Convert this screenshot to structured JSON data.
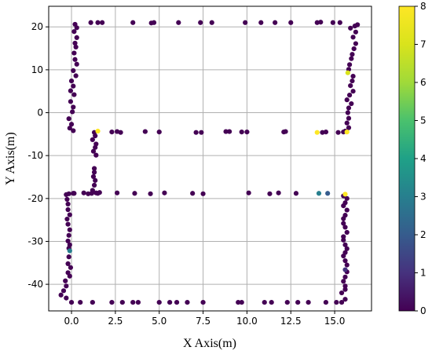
{
  "chart_data": {
    "type": "scatter",
    "xlabel": "X Axis(m)",
    "ylabel": "Y Axis(m)",
    "xlim": [
      -1.3,
      17.1
    ],
    "ylim": [
      -46.2,
      24.8
    ],
    "xticks": [
      "0.0",
      "2.5",
      "5.0",
      "7.5",
      "10.0",
      "12.5",
      "15.0"
    ],
    "yticks": [
      "20",
      "10",
      "0",
      "-10",
      "-20",
      "-30",
      "-40"
    ],
    "xtick_values": [
      0,
      2.5,
      5,
      7.5,
      10,
      12.5,
      15
    ],
    "ytick_values": [
      20,
      10,
      0,
      -10,
      -20,
      -30,
      -40
    ],
    "grid": true,
    "colormap": "viridis",
    "colorbar": {
      "min": 0,
      "max": 8,
      "ticks": [
        "0",
        "1",
        "2",
        "3",
        "4",
        "5",
        "6",
        "7",
        "8"
      ]
    },
    "points": [
      [
        0.2,
        20.6,
        0
      ],
      [
        0.3,
        19.8,
        0
      ],
      [
        0.15,
        18.9,
        0
      ],
      [
        0.3,
        17.5,
        0
      ],
      [
        0.2,
        16.2,
        0
      ],
      [
        0.25,
        15.3,
        0
      ],
      [
        0.15,
        13.9,
        0
      ],
      [
        0.2,
        12.4,
        0
      ],
      [
        0.3,
        11.3,
        0
      ],
      [
        0.1,
        9.8,
        0
      ],
      [
        0.25,
        8.6,
        0
      ],
      [
        0.0,
        7.4,
        0
      ],
      [
        0.1,
        6.2,
        0
      ],
      [
        -0.05,
        5.1,
        0
      ],
      [
        0.15,
        4.2,
        0
      ],
      [
        -0.05,
        2.6,
        0
      ],
      [
        0.1,
        1.3,
        0
      ],
      [
        0.05,
        0.2,
        0
      ],
      [
        -0.15,
        -1.4,
        0
      ],
      [
        0.0,
        -2.7,
        0
      ],
      [
        -0.1,
        -3.6,
        0
      ],
      [
        0.1,
        -4.2,
        0
      ],
      [
        1.1,
        21.0,
        0
      ],
      [
        1.5,
        21.0,
        0
      ],
      [
        1.75,
        21.0,
        0
      ],
      [
        3.5,
        21.0,
        0
      ],
      [
        4.55,
        20.9,
        0
      ],
      [
        4.7,
        21.0,
        0
      ],
      [
        6.1,
        21.0,
        0
      ],
      [
        7.35,
        21.0,
        0
      ],
      [
        8.0,
        21.0,
        0
      ],
      [
        9.9,
        21.0,
        0
      ],
      [
        10.8,
        21.0,
        0
      ],
      [
        11.6,
        21.0,
        0
      ],
      [
        12.5,
        21.0,
        0
      ],
      [
        14.0,
        21.0,
        0
      ],
      [
        14.2,
        21.1,
        0
      ],
      [
        14.9,
        21.0,
        0
      ],
      [
        15.3,
        21.0,
        0
      ],
      [
        16.3,
        20.5,
        0
      ],
      [
        16.15,
        20.2,
        0
      ],
      [
        15.9,
        19.7,
        0
      ],
      [
        16.2,
        18.8,
        0
      ],
      [
        16.05,
        17.6,
        0
      ],
      [
        16.2,
        16.1,
        0
      ],
      [
        16.1,
        14.9,
        0
      ],
      [
        16.0,
        13.6,
        0
      ],
      [
        15.95,
        12.6,
        0
      ],
      [
        15.85,
        11.2,
        0
      ],
      [
        15.8,
        10.1,
        0
      ],
      [
        15.75,
        9.3,
        7
      ],
      [
        16.05,
        8.5,
        0
      ],
      [
        16.0,
        7.4,
        0
      ],
      [
        15.9,
        6.3,
        0
      ],
      [
        16.05,
        5.0,
        0
      ],
      [
        15.85,
        4.1,
        0
      ],
      [
        15.7,
        3.0,
        0
      ],
      [
        15.95,
        2.1,
        0
      ],
      [
        15.8,
        1.1,
        0
      ],
      [
        15.75,
        0.0,
        0
      ],
      [
        15.8,
        -1.3,
        0
      ],
      [
        15.7,
        -2.4,
        0
      ],
      [
        15.8,
        -3.5,
        0
      ],
      [
        15.6,
        -4.3,
        0
      ],
      [
        15.7,
        -4.5,
        8
      ],
      [
        1.3,
        -4.6,
        0
      ],
      [
        1.5,
        -4.3,
        8
      ],
      [
        1.35,
        -5.4,
        0
      ],
      [
        1.2,
        -6.3,
        0
      ],
      [
        1.4,
        -7.3,
        0
      ],
      [
        1.35,
        -8.1,
        0
      ],
      [
        1.25,
        -9.0,
        0
      ],
      [
        1.4,
        -9.9,
        0
      ],
      [
        1.3,
        -13.0,
        0
      ],
      [
        1.3,
        -13.9,
        0
      ],
      [
        1.25,
        -14.9,
        0
      ],
      [
        1.35,
        -15.8,
        0
      ],
      [
        1.3,
        -16.9,
        0
      ],
      [
        1.2,
        -18.1,
        0
      ],
      [
        2.3,
        -4.5,
        0
      ],
      [
        2.6,
        -4.4,
        0
      ],
      [
        2.8,
        -4.6,
        0
      ],
      [
        4.2,
        -4.4,
        0
      ],
      [
        5.0,
        -4.5,
        0
      ],
      [
        7.1,
        -4.6,
        0
      ],
      [
        7.4,
        -4.6,
        0
      ],
      [
        8.8,
        -4.4,
        0
      ],
      [
        9.0,
        -4.4,
        0
      ],
      [
        9.7,
        -4.5,
        0
      ],
      [
        10.0,
        -4.5,
        0
      ],
      [
        12.1,
        -4.5,
        0
      ],
      [
        12.2,
        -4.4,
        0
      ],
      [
        14.0,
        -4.6,
        8
      ],
      [
        14.3,
        -4.6,
        0
      ],
      [
        14.5,
        -4.5,
        0
      ],
      [
        15.2,
        -4.6,
        0
      ],
      [
        15.5,
        -4.5,
        0
      ],
      [
        -0.15,
        -18.9,
        0
      ],
      [
        0.1,
        -18.8,
        0
      ],
      [
        0.15,
        -18.8,
        0
      ],
      [
        0.7,
        -18.7,
        0
      ],
      [
        0.95,
        -18.9,
        0
      ],
      [
        1.15,
        -18.8,
        0
      ],
      [
        1.4,
        -18.7,
        0
      ],
      [
        1.5,
        -18.8,
        0
      ],
      [
        1.6,
        -18.6,
        0
      ],
      [
        2.6,
        -18.7,
        0
      ],
      [
        3.6,
        -18.8,
        0
      ],
      [
        4.5,
        -18.9,
        0
      ],
      [
        5.3,
        -18.7,
        0
      ],
      [
        6.9,
        -18.8,
        0
      ],
      [
        7.5,
        -18.9,
        0
      ],
      [
        10.1,
        -18.7,
        0
      ],
      [
        11.3,
        -18.9,
        0
      ],
      [
        11.8,
        -18.7,
        0
      ],
      [
        12.8,
        -18.8,
        0
      ],
      [
        14.1,
        -18.8,
        3
      ],
      [
        14.6,
        -18.8,
        2
      ],
      [
        15.5,
        -19.4,
        0
      ],
      [
        -0.3,
        -19.1,
        0
      ],
      [
        -0.25,
        -20.2,
        0
      ],
      [
        -0.2,
        -21.3,
        0
      ],
      [
        -0.2,
        -22.6,
        0
      ],
      [
        -0.1,
        -23.8,
        0
      ],
      [
        -0.25,
        -24.8,
        0
      ],
      [
        -0.2,
        -26.0,
        0
      ],
      [
        -0.1,
        -27.3,
        0
      ],
      [
        -0.15,
        -28.6,
        0
      ],
      [
        -0.2,
        -29.9,
        0
      ],
      [
        -0.1,
        -30.8,
        0
      ],
      [
        -0.15,
        -31.6,
        0
      ],
      [
        -0.1,
        -32.2,
        3
      ],
      [
        -0.15,
        -33.6,
        0
      ],
      [
        -0.2,
        -35.2,
        0
      ],
      [
        -0.05,
        -36.1,
        0
      ],
      [
        -0.2,
        -37.3,
        0
      ],
      [
        -0.1,
        -38.1,
        0
      ],
      [
        -0.35,
        -39.2,
        0
      ],
      [
        -0.3,
        -40.4,
        0
      ],
      [
        -0.45,
        -41.5,
        0
      ],
      [
        -0.6,
        -42.5,
        0
      ],
      [
        -0.3,
        -43.2,
        0
      ],
      [
        0.0,
        -44.2,
        0
      ],
      [
        0.5,
        -44.2,
        0
      ],
      [
        1.2,
        -44.2,
        0
      ],
      [
        2.3,
        -44.2,
        0
      ],
      [
        2.9,
        -44.2,
        0
      ],
      [
        3.5,
        -44.2,
        0
      ],
      [
        3.8,
        -44.2,
        0
      ],
      [
        5.0,
        -44.2,
        0
      ],
      [
        5.6,
        -44.2,
        0
      ],
      [
        6.0,
        -44.2,
        0
      ],
      [
        6.6,
        -44.2,
        0
      ],
      [
        7.5,
        -44.2,
        0
      ],
      [
        9.5,
        -44.2,
        0
      ],
      [
        9.7,
        -44.2,
        0
      ],
      [
        11.0,
        -44.2,
        0
      ],
      [
        11.4,
        -44.2,
        0
      ],
      [
        12.3,
        -44.2,
        0
      ],
      [
        12.9,
        -44.2,
        0
      ],
      [
        13.5,
        -44.2,
        0
      ],
      [
        14.5,
        -44.2,
        0
      ],
      [
        15.1,
        -44.2,
        0
      ],
      [
        15.4,
        -44.2,
        0
      ],
      [
        15.6,
        -43.5,
        0
      ],
      [
        15.6,
        -19.0,
        8
      ],
      [
        15.7,
        -20.0,
        0
      ],
      [
        15.6,
        -21.0,
        0
      ],
      [
        15.5,
        -21.7,
        0
      ],
      [
        15.7,
        -22.7,
        0
      ],
      [
        15.6,
        -23.9,
        0
      ],
      [
        15.5,
        -24.7,
        0
      ],
      [
        15.5,
        -25.8,
        0
      ],
      [
        15.6,
        -26.7,
        0
      ],
      [
        15.7,
        -27.9,
        0
      ],
      [
        15.5,
        -28.9,
        0
      ],
      [
        15.5,
        -29.7,
        0
      ],
      [
        15.6,
        -30.8,
        0
      ],
      [
        15.7,
        -31.7,
        0
      ],
      [
        15.6,
        -32.6,
        0
      ],
      [
        15.5,
        -33.4,
        0
      ],
      [
        15.6,
        -34.5,
        0
      ],
      [
        15.7,
        -35.5,
        0
      ],
      [
        15.6,
        -36.6,
        1
      ],
      [
        15.7,
        -37.1,
        0
      ],
      [
        15.6,
        -38.3,
        0
      ],
      [
        15.5,
        -39.3,
        0
      ],
      [
        15.6,
        -40.4,
        0
      ],
      [
        15.6,
        -41.2,
        0
      ],
      [
        15.4,
        -42.0,
        0
      ]
    ]
  }
}
